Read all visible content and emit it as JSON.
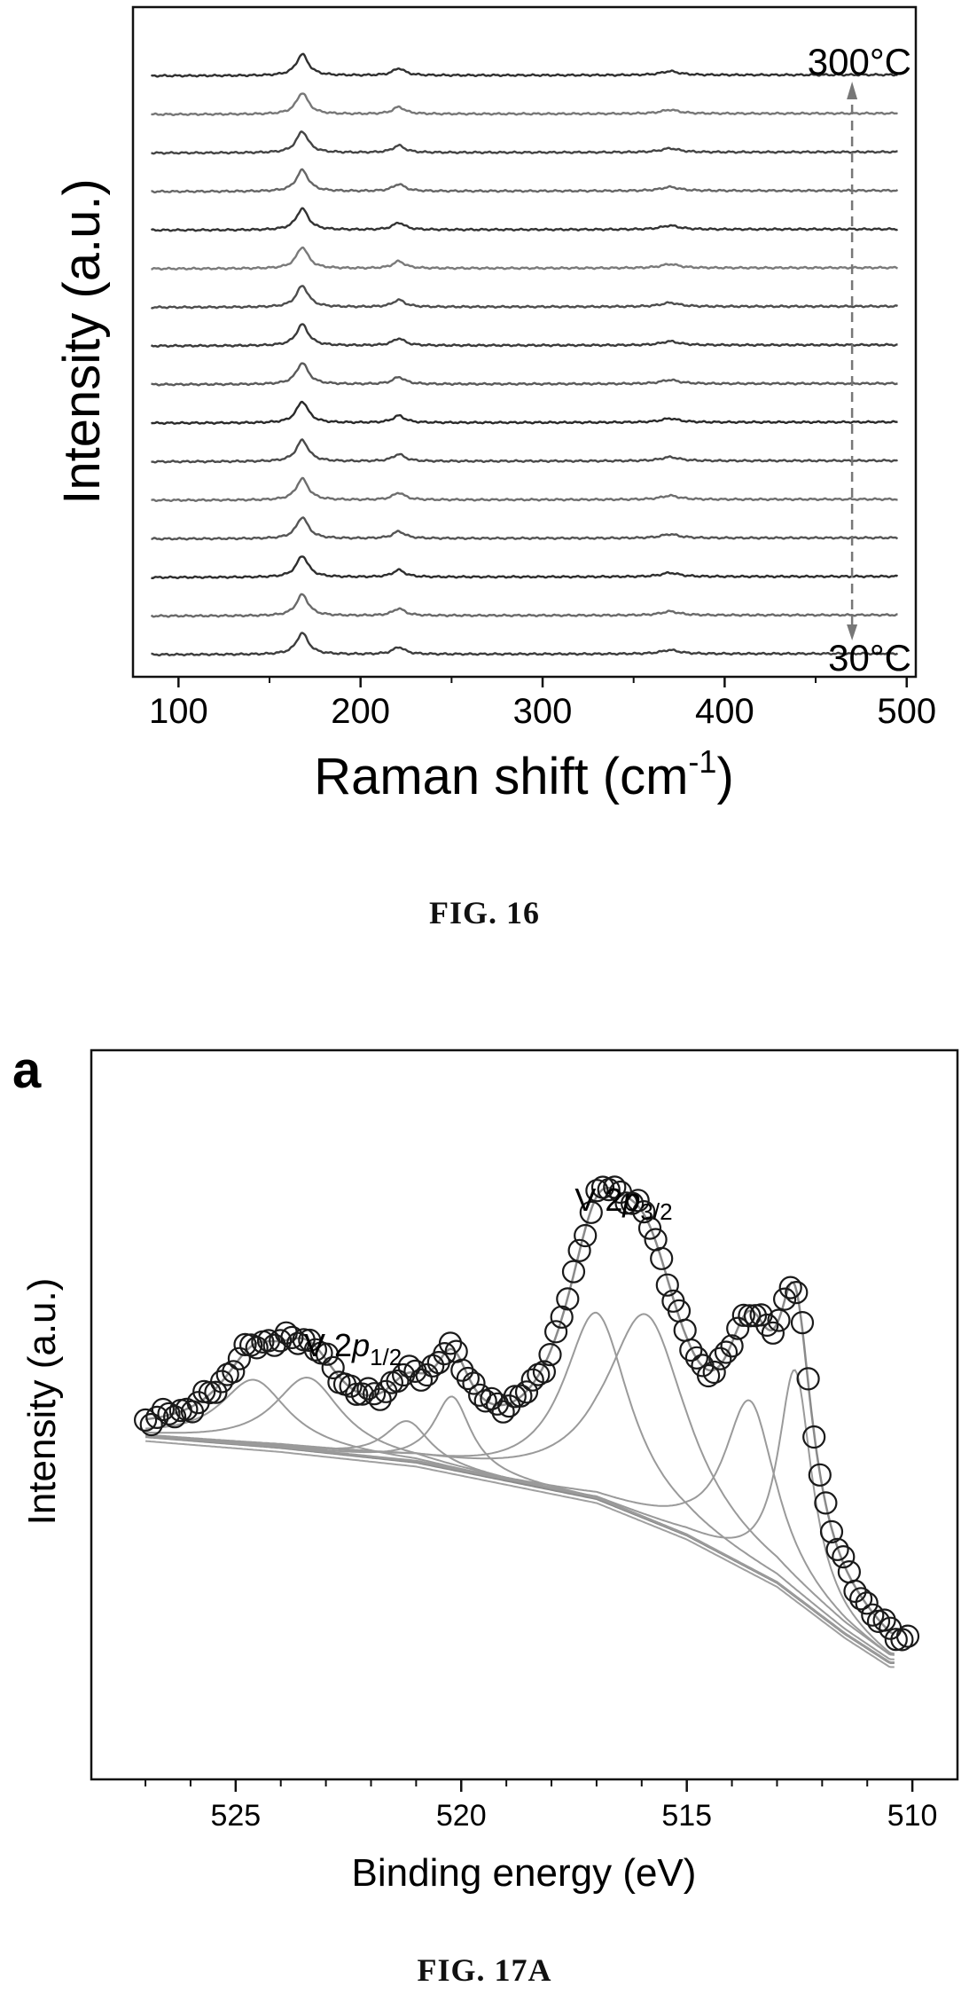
{
  "chart_data": [
    {
      "type": "line",
      "figure_caption": "FIG. 16",
      "xlabel": "Raman shift (cm",
      "xlabel_sup": "-1",
      "xlabel_close": ")",
      "ylabel": "Intensity (a.u.)",
      "xlim": [
        75,
        505
      ],
      "xticks": [
        100,
        200,
        300,
        400,
        500
      ],
      "annotations": {
        "top": "300",
        "bottom": "30",
        "unit": "°C"
      },
      "peaks": [
        {
          "center": 168,
          "height": 1.0,
          "width": 4
        },
        {
          "center": 221,
          "height": 0.33,
          "width": 4
        },
        {
          "center": 370,
          "height": 0.18,
          "width": 6
        }
      ],
      "n_spectra": 16,
      "series_gray_levels": [
        "#3d3d3d",
        "#6a6a6a",
        "#2e2e2e",
        "#555555",
        "#6e6e6e",
        "#4a4a4a",
        "#2a2a2a",
        "#5a5a5a",
        "#3a3a3a",
        "#4d4d4d",
        "#7a7a7a",
        "#333333",
        "#666666",
        "#444444",
        "#777777",
        "#303030"
      ]
    },
    {
      "type": "scatter",
      "figure_caption": "FIG. 17A",
      "panel_label": "a",
      "xlabel": "Binding energy (eV)",
      "ylabel": "Intensity (a.u.)",
      "xlim": [
        528.2,
        509.0
      ],
      "x_reversed": true,
      "xticks": [
        525,
        520,
        515,
        510
      ],
      "ylim": [
        0,
        1
      ],
      "labels": [
        {
          "text": "V 2",
          "italic": "p",
          "sub": "1/2",
          "x": 522.4,
          "y": 0.58
        },
        {
          "text": "V 2",
          "italic": "p",
          "sub": "3/2",
          "x": 516.4,
          "y": 0.78
        }
      ],
      "background": [
        [
          527,
          0.47
        ],
        [
          524,
          0.455
        ],
        [
          521,
          0.435
        ],
        [
          519,
          0.41
        ],
        [
          517,
          0.385
        ],
        [
          515,
          0.335
        ],
        [
          513,
          0.27
        ],
        [
          511.5,
          0.2
        ],
        [
          510.5,
          0.16
        ]
      ],
      "components": [
        {
          "center": 524.6,
          "height": 0.09,
          "width": 0.9
        },
        {
          "center": 523.4,
          "height": 0.1,
          "width": 0.9
        },
        {
          "center": 521.2,
          "height": 0.055,
          "width": 0.6
        },
        {
          "center": 520.2,
          "height": 0.1,
          "width": 0.5
        },
        {
          "center": 517.0,
          "height": 0.255,
          "width": 0.9
        },
        {
          "center": 515.9,
          "height": 0.28,
          "width": 1.1
        },
        {
          "center": 513.6,
          "height": 0.23,
          "width": 0.7
        },
        {
          "center": 512.6,
          "height": 0.31,
          "width": 0.45
        }
      ],
      "point_spacing": 0.13
    }
  ]
}
